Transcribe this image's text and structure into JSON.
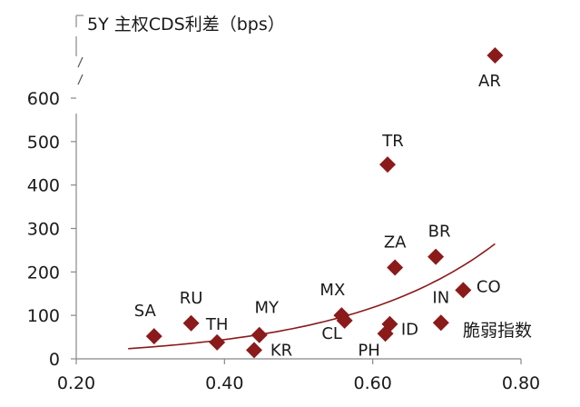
{
  "chart_data": {
    "type": "scatter",
    "title": "5Y 主权CDS利差（bps）",
    "xlabel": "脆弱指数",
    "ylabel": "",
    "xlim": [
      0.2,
      0.8
    ],
    "ylim": [
      0,
      600
    ],
    "axis_break": true,
    "xticks": [
      "0.20",
      "0.40",
      "0.60",
      "0.80"
    ],
    "yticks": [
      "0",
      "100",
      "200",
      "300",
      "400",
      "500",
      "600"
    ],
    "grid": false,
    "legend": "none",
    "marker": "diamond",
    "marker_color": "#8b1a1a",
    "trend_color": "#8b1a1a",
    "points": [
      {
        "label": "SA",
        "x": 0.305,
        "y": 52
      },
      {
        "label": "RU",
        "x": 0.355,
        "y": 82
      },
      {
        "label": "TH",
        "x": 0.39,
        "y": 38
      },
      {
        "label": "MY",
        "x": 0.447,
        "y": 55
      },
      {
        "label": "KR",
        "x": 0.44,
        "y": 20
      },
      {
        "label": "MX",
        "x": 0.558,
        "y": 100
      },
      {
        "label": "CL",
        "x": 0.562,
        "y": 88
      },
      {
        "label": "PH",
        "x": 0.617,
        "y": 58
      },
      {
        "label": "ID",
        "x": 0.623,
        "y": 80
      },
      {
        "label": "TR",
        "x": 0.62,
        "y": 447
      },
      {
        "label": "ZA",
        "x": 0.63,
        "y": 210
      },
      {
        "label": "BR",
        "x": 0.685,
        "y": 235
      },
      {
        "label": "IN",
        "x": 0.692,
        "y": 83
      },
      {
        "label": "CO",
        "x": 0.722,
        "y": 158
      },
      {
        "label": "AR",
        "x": 0.765,
        "y": 1000
      }
    ],
    "trendline": {
      "type": "exponential",
      "x_range": [
        0.27,
        0.765
      ],
      "a": 6.28,
      "b": 4.89
    }
  }
}
